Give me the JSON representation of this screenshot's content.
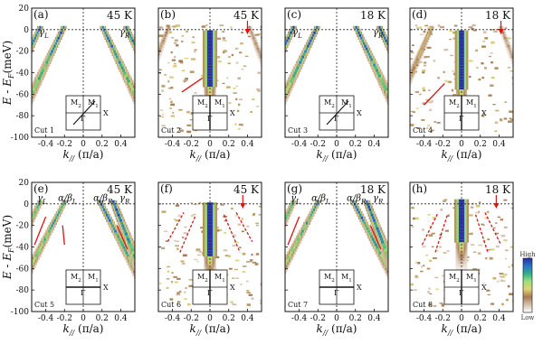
{
  "chart_data": [
    {
      "type": "heatmap",
      "panel": "(a)",
      "temperature": "45 K",
      "cut": "Cut 1",
      "cut_type": "diag",
      "bands": [
        {
          "label": "γL",
          "k0": -0.47,
          "v": 0.55,
          "w": 0.03,
          "I": 1
        },
        {
          "label": "",
          "k0": -0.22,
          "v": 0.55,
          "w": 0.03,
          "I": 1
        },
        {
          "label": "",
          "k0": 0.22,
          "v": -0.55,
          "w": 0.03,
          "I": 1
        },
        {
          "label": "γR",
          "k0": 0.47,
          "v": -0.55,
          "w": 0.03,
          "I": 1
        }
      ],
      "blob": null,
      "labels": [
        {
          "t": "γL",
          "k": -0.42,
          "e": -5
        },
        {
          "t": "γR",
          "k": 0.44,
          "e": -5
        }
      ],
      "arrow": null,
      "red_lines": [],
      "noise": false
    },
    {
      "type": "heatmap",
      "panel": "(b)",
      "temperature": "45 K",
      "cut": "Cut 2",
      "cut_type": "vert",
      "bands": [
        {
          "label": "",
          "k0": -0.45,
          "v": 0.45,
          "w": 0.028,
          "I": 0.3
        },
        {
          "label": "",
          "k0": 0.43,
          "v": -0.45,
          "w": 0.028,
          "I": 0.3
        }
      ],
      "blob": {
        "k": 0.0,
        "w": 0.06,
        "top": -2,
        "bottom": -52
      },
      "labels": [],
      "arrow": {
        "k": 0.4
      },
      "red_lines": [
        {
          "k1": -0.3,
          "e1": -58,
          "k2": -0.08,
          "e2": -45,
          "dash": false
        }
      ],
      "noise": true
    },
    {
      "type": "heatmap",
      "panel": "(c)",
      "temperature": "18 K",
      "cut": "Cut 3",
      "cut_type": "diag",
      "bands": [
        {
          "label": "γL",
          "k0": -0.47,
          "v": 0.55,
          "w": 0.03,
          "I": 1
        },
        {
          "label": "",
          "k0": -0.22,
          "v": 0.55,
          "w": 0.03,
          "I": 1
        },
        {
          "label": "",
          "k0": 0.22,
          "v": -0.55,
          "w": 0.03,
          "I": 1
        },
        {
          "label": "γR",
          "k0": 0.47,
          "v": -0.55,
          "w": 0.03,
          "I": 1
        }
      ],
      "blob": null,
      "labels": [
        {
          "t": "γL",
          "k": -0.42,
          "e": -5
        },
        {
          "t": "γR",
          "k": 0.44,
          "e": -5
        }
      ],
      "arrow": null,
      "red_lines": [],
      "noise": false
    },
    {
      "type": "heatmap",
      "panel": "(d)",
      "temperature": "18 K",
      "cut": "Cut 4",
      "cut_type": "vert",
      "bands": [
        {
          "label": "",
          "k0": -0.33,
          "v": 0.5,
          "w": 0.028,
          "I": 0.5
        },
        {
          "label": "",
          "k0": 0.43,
          "v": -0.45,
          "w": 0.028,
          "I": 0.3
        }
      ],
      "blob": {
        "k": 0.0,
        "w": 0.055,
        "top": -2,
        "bottom": -55
      },
      "labels": [],
      "arrow": {
        "k": 0.42
      },
      "red_lines": [
        {
          "k1": -0.4,
          "e1": -70,
          "k2": -0.18,
          "e2": -50,
          "dash": false
        }
      ],
      "noise": true
    },
    {
      "type": "heatmap",
      "panel": "(e)",
      "temperature": "45 K",
      "cut": "Cut 5",
      "cut_type": "cross",
      "bands": [
        {
          "label": "γL",
          "k0": -0.47,
          "v": 0.55,
          "w": 0.03,
          "I": 0.8
        },
        {
          "label": "α/βL",
          "k0": -0.21,
          "v": 0.6,
          "w": 0.028,
          "I": 0.9
        },
        {
          "label": "α/βR",
          "k0": 0.19,
          "v": -0.6,
          "w": 0.03,
          "I": 1
        },
        {
          "label": "γR",
          "k0": 0.33,
          "v": -0.45,
          "w": 0.035,
          "I": 1
        }
      ],
      "blob": null,
      "labels": [
        {
          "t": "γL",
          "k": -0.44,
          "e": 3
        },
        {
          "t": "α/βL",
          "k": -0.17,
          "e": 3
        },
        {
          "t": "α/βR",
          "k": 0.21,
          "e": 3
        },
        {
          "t": "γR",
          "k": 0.44,
          "e": 3
        }
      ],
      "arrow": null,
      "red_lines": [
        {
          "k1": -0.52,
          "e1": -38,
          "k2": -0.4,
          "e2": -12,
          "dash": false
        },
        {
          "k1": -0.2,
          "e1": -38,
          "k2": -0.22,
          "e2": -20,
          "dash": false
        },
        {
          "k1": 0.36,
          "e1": -20,
          "k2": 0.47,
          "e2": -42,
          "dash": false
        }
      ],
      "noise": false
    },
    {
      "type": "heatmap",
      "panel": "(f)",
      "temperature": "45 K",
      "cut": "Cut 6",
      "cut_type": "vert",
      "bands": [],
      "blob": {
        "k": 0.0,
        "w": 0.06,
        "top": 0,
        "bottom": -48
      },
      "labels": [],
      "arrow": {
        "k": 0.35
      },
      "red_lines": [
        {
          "k1": -0.45,
          "e1": -35,
          "k2": -0.28,
          "e2": -8,
          "dash": true
        },
        {
          "k1": -0.32,
          "e1": -45,
          "k2": -0.15,
          "e2": -10,
          "dash": true
        },
        {
          "k1": 0.15,
          "e1": -10,
          "k2": 0.32,
          "e2": -45,
          "dash": true
        },
        {
          "k1": 0.28,
          "e1": -8,
          "k2": 0.45,
          "e2": -35,
          "dash": true
        }
      ],
      "noise": true
    },
    {
      "type": "heatmap",
      "panel": "(g)",
      "temperature": "18 K",
      "cut": "Cut 7",
      "cut_type": "cross",
      "bands": [
        {
          "label": "γL",
          "k0": -0.47,
          "v": 0.55,
          "w": 0.03,
          "I": 0.8
        },
        {
          "label": "α/βL",
          "k0": -0.21,
          "v": 0.6,
          "w": 0.028,
          "I": 0.9
        },
        {
          "label": "α/βR",
          "k0": 0.19,
          "v": -0.6,
          "w": 0.03,
          "I": 1
        },
        {
          "label": "γR",
          "k0": 0.33,
          "v": -0.45,
          "w": 0.035,
          "I": 1
        }
      ],
      "blob": null,
      "labels": [
        {
          "t": "γL",
          "k": -0.44,
          "e": 3
        },
        {
          "t": "α/βL",
          "k": -0.17,
          "e": 3
        },
        {
          "t": "α/βR",
          "k": 0.21,
          "e": 3
        },
        {
          "t": "γR",
          "k": 0.44,
          "e": 3
        }
      ],
      "arrow": null,
      "red_lines": [
        {
          "k1": -0.52,
          "e1": -38,
          "k2": -0.4,
          "e2": -12,
          "dash": false
        },
        {
          "k1": 0.36,
          "e1": -20,
          "k2": 0.47,
          "e2": -42,
          "dash": false
        }
      ],
      "noise": false
    },
    {
      "type": "heatmap",
      "panel": "(h)",
      "temperature": "18 K",
      "cut": "Cut 8",
      "cut_type": "vert",
      "bands": [],
      "blob": {
        "k": 0.0,
        "w": 0.06,
        "top": 3,
        "bottom": -35
      },
      "labels": [],
      "arrow": {
        "k": 0.37
      },
      "red_lines": [
        {
          "k1": -0.42,
          "e1": -38,
          "k2": -0.25,
          "e2": -8,
          "dash": true
        },
        {
          "k1": -0.28,
          "e1": -45,
          "k2": -0.15,
          "e2": -10,
          "dash": true
        },
        {
          "k1": 0.15,
          "e1": -10,
          "k2": 0.28,
          "e2": -45,
          "dash": true
        },
        {
          "k1": 0.25,
          "e1": -8,
          "k2": 0.42,
          "e2": -38,
          "dash": true
        },
        {
          "k1": -0.15,
          "e1": -75,
          "k2": -0.02,
          "e2": -75,
          "dash": false
        }
      ],
      "noise": true
    }
  ],
  "axes": {
    "xlim": [
      -0.55,
      0.55
    ],
    "ylim": [
      -100,
      20
    ],
    "xticks": [
      -0.4,
      -0.2,
      0,
      0.2,
      0.4
    ],
    "xtick_labels": [
      "-0.4",
      "-0.2",
      "0",
      "0.2",
      "0.4"
    ],
    "yticks": [
      20,
      0,
      -20,
      -40,
      -60,
      -80,
      -100
    ],
    "ytick_labels": [
      "20",
      "0",
      "-20",
      "-40",
      "-60",
      "-80",
      "-100"
    ],
    "xlabel_main": "k",
    "xlabel_sub": "//",
    "xlabel_unit": "(π/a)",
    "ylabel_top": "E - E",
    "ylabel_sub": "F",
    "ylabel_unit": "(meV)",
    "ylabel_bottom": "E - E",
    "ylabel_bottom_sub": "F",
    "ylabel_bottom_unit": "(meV)"
  },
  "bz_labels": {
    "m1": "M",
    "m1_sub": "1",
    "m2": "M",
    "m2_sub": "2",
    "gamma": "Γ",
    "x": "X"
  },
  "colorbar": {
    "high": "High",
    "low": "Low",
    "colors": [
      "#ffffff",
      "#d6c2ae",
      "#a67b55",
      "#e0d27a",
      "#9fe07b",
      "#2fb08c",
      "#2a74c9",
      "#2c2aa8"
    ]
  }
}
